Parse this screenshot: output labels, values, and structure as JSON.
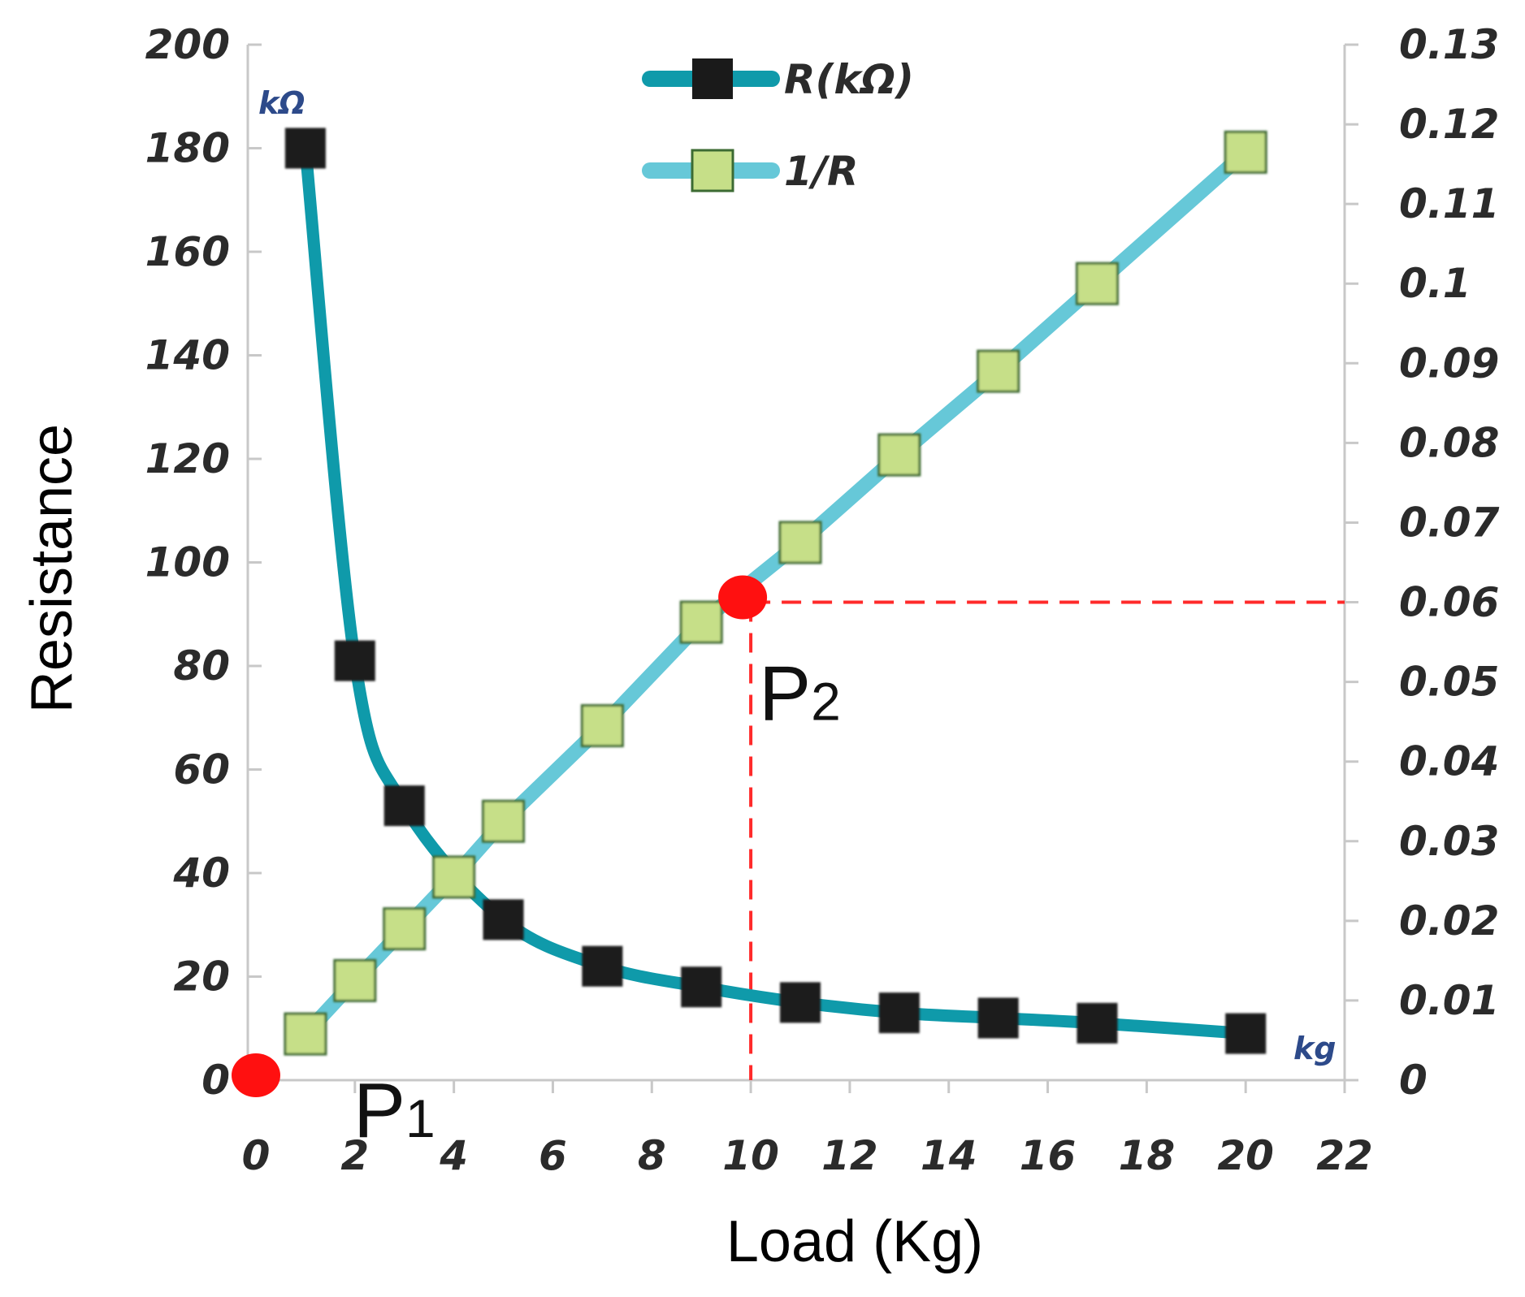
{
  "chart_data": {
    "type": "line",
    "xlabel": "Load (Kg)",
    "ylabel": "Resistance",
    "xlim": [
      0,
      22
    ],
    "x_ticks": [
      0,
      2,
      4,
      6,
      8,
      10,
      12,
      14,
      16,
      18,
      20,
      22
    ],
    "ylim_left": [
      0,
      200
    ],
    "y_left_ticks": [
      0,
      20,
      40,
      60,
      80,
      100,
      120,
      140,
      160,
      180,
      200
    ],
    "ylim_right": [
      0,
      0.13
    ],
    "y_right_ticks": [
      "0",
      "0.01",
      "0.02",
      "0.03",
      "0.04",
      "0.05",
      "0.06",
      "0.07",
      "0.08",
      "0.09",
      "0.1",
      "0.11",
      "0.12",
      "0.13"
    ],
    "left_unit_label": "kΩ",
    "x_unit_label": "kg",
    "series": [
      {
        "name": "R(kΩ)",
        "axis": "left",
        "x": [
          1,
          2,
          3,
          5,
          7,
          9,
          11,
          13,
          15,
          17,
          20
        ],
        "values": [
          180,
          81,
          53,
          31,
          22,
          18,
          15,
          13,
          12,
          11,
          9
        ],
        "line_color": "#0f9aaa",
        "marker_color": "#1a1a1a"
      },
      {
        "name": "1/R",
        "axis": "right",
        "x": [
          1,
          2,
          3,
          4,
          5,
          7,
          9,
          11,
          13,
          15,
          17,
          20
        ],
        "values": [
          0.0058,
          0.0125,
          0.019,
          0.0255,
          0.0325,
          0.0445,
          0.0575,
          0.0675,
          0.0785,
          0.089,
          0.1,
          0.1165
        ],
        "line_color": "#66c8d8",
        "marker_color": "#c6df88"
      }
    ],
    "annotations": [
      {
        "label": "P",
        "sub": "1",
        "x": 0,
        "y": 0,
        "axis": "left"
      },
      {
        "label": "P",
        "sub": "2",
        "x": 10,
        "y": 0.06,
        "axis": "right",
        "guide_lines": true
      }
    ],
    "legend_position": "top-center",
    "grid": false
  }
}
